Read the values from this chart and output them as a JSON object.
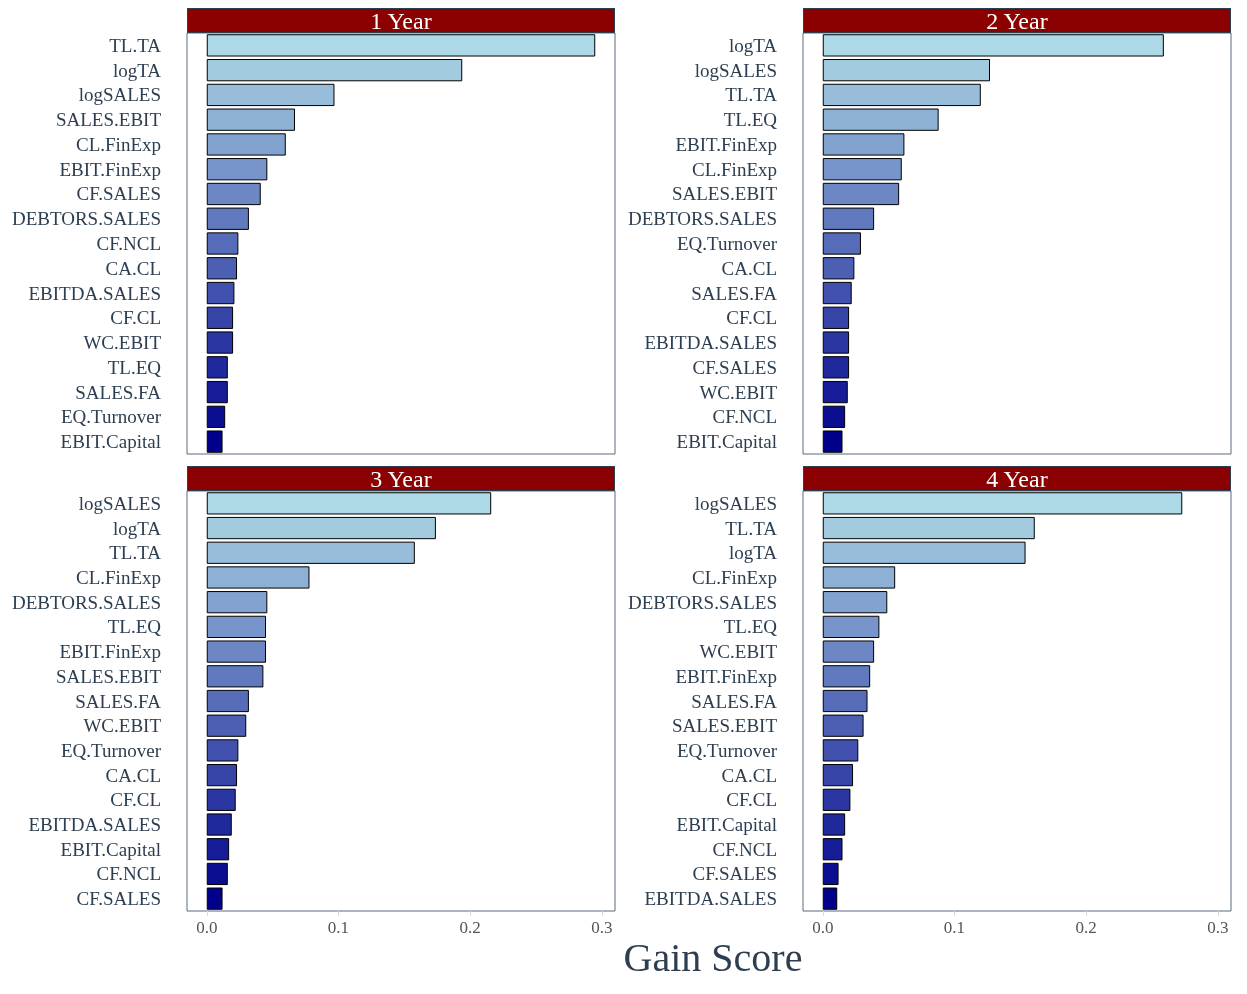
{
  "chart_data": [
    {
      "type": "bar",
      "orientation": "horizontal",
      "title": "1 Year",
      "categories": [
        "TL.TA",
        "logTA",
        "logSALES",
        "SALES.EBIT",
        "CL.FinExp",
        "EBIT.FinExp",
        "CF.SALES",
        "DEBTORS.SALES",
        "CF.NCL",
        "CA.CL",
        "EBITDA.SALES",
        "CF.CL",
        "WC.EBIT",
        "TL.EQ",
        "SALES.FA",
        "EQ.Turnover",
        "EBIT.Capital"
      ],
      "values": [
        0.295,
        0.194,
        0.097,
        0.067,
        0.06,
        0.046,
        0.041,
        0.032,
        0.024,
        0.023,
        0.021,
        0.02,
        0.02,
        0.016,
        0.016,
        0.014,
        0.012
      ],
      "colors": [
        "#add8e6",
        "#a2cbe0",
        "#97bddb",
        "#8db0d5",
        "#82a2cf",
        "#7795ca",
        "#6c87c4",
        "#617abe",
        "#576cb9",
        "#4c5fb3",
        "#4151ad",
        "#3644a8",
        "#2b36a2",
        "#20299c",
        "#161b97",
        "#0b0e91",
        "#00008b"
      ],
      "xlim": [
        -0.015,
        0.31
      ],
      "tick_labels": "y",
      "grid": false
    },
    {
      "type": "bar",
      "orientation": "horizontal",
      "title": "2 Year",
      "categories": [
        "logTA",
        "logSALES",
        "TL.TA",
        "TL.EQ",
        "EBIT.FinExp",
        "CL.FinExp",
        "SALES.EBIT",
        "DEBTORS.SALES",
        "EQ.Turnover",
        "CA.CL",
        "SALES.FA",
        "CF.CL",
        "EBITDA.SALES",
        "CF.SALES",
        "WC.EBIT",
        "CF.NCL",
        "EBIT.Capital"
      ],
      "values": [
        0.259,
        0.127,
        0.12,
        0.088,
        0.062,
        0.06,
        0.058,
        0.039,
        0.029,
        0.024,
        0.022,
        0.02,
        0.02,
        0.02,
        0.019,
        0.017,
        0.015
      ],
      "colors": [
        "#add8e6",
        "#a2cbe0",
        "#97bddb",
        "#8db0d5",
        "#82a2cf",
        "#7795ca",
        "#6c87c4",
        "#617abe",
        "#576cb9",
        "#4c5fb3",
        "#4151ad",
        "#3644a8",
        "#2b36a2",
        "#20299c",
        "#161b97",
        "#0b0e91",
        "#00008b"
      ],
      "xlim": [
        -0.015,
        0.31
      ],
      "tick_labels": "y",
      "grid": false
    },
    {
      "type": "bar",
      "orientation": "horizontal",
      "title": "3 Year",
      "categories": [
        "logSALES",
        "logTA",
        "TL.TA",
        "CL.FinExp",
        "DEBTORS.SALES",
        "TL.EQ",
        "EBIT.FinExp",
        "SALES.EBIT",
        "SALES.FA",
        "WC.EBIT",
        "EQ.Turnover",
        "CA.CL",
        "CF.CL",
        "EBITDA.SALES",
        "EBIT.Capital",
        "CF.NCL",
        "CF.SALES"
      ],
      "values": [
        0.216,
        0.174,
        0.158,
        0.078,
        0.046,
        0.045,
        0.045,
        0.043,
        0.032,
        0.03,
        0.024,
        0.023,
        0.022,
        0.019,
        0.017,
        0.016,
        0.012
      ],
      "colors": [
        "#add8e6",
        "#a2cbe0",
        "#97bddb",
        "#8db0d5",
        "#82a2cf",
        "#7795ca",
        "#6c87c4",
        "#617abe",
        "#576cb9",
        "#4c5fb3",
        "#4151ad",
        "#3644a8",
        "#2b36a2",
        "#20299c",
        "#161b97",
        "#0b0e91",
        "#00008b"
      ],
      "xlim": [
        -0.015,
        0.31
      ],
      "xticks": [
        {
          "value": 0,
          "label": "0.0"
        },
        0.1,
        0.2,
        0.3
      ],
      "grid": false
    },
    {
      "type": "bar",
      "orientation": "horizontal",
      "title": "4 Year",
      "xlabel": "Gain Score",
      "categories": [
        "logSALES",
        "TL.TA",
        "logTA",
        "CL.FinExp",
        "DEBTORS.SALES",
        "TL.EQ",
        "WC.EBIT",
        "EBIT.FinExp",
        "SALES.FA",
        "SALES.EBIT",
        "EQ.Turnover",
        "CA.CL",
        "CF.CL",
        "EBIT.Capital",
        "CF.NCL",
        "CF.SALES",
        "EBITDA.SALES"
      ],
      "values": [
        0.273,
        0.161,
        0.154,
        0.055,
        0.049,
        0.043,
        0.039,
        0.036,
        0.034,
        0.031,
        0.027,
        0.023,
        0.021,
        0.017,
        0.015,
        0.012,
        0.011
      ],
      "colors": [
        "#add8e6",
        "#a2cbe0",
        "#97bddb",
        "#8db0d5",
        "#82a2cf",
        "#7795ca",
        "#6c87c4",
        "#617abe",
        "#576cb9",
        "#4c5fb3",
        "#4151ad",
        "#3644a8",
        "#2b36a2",
        "#20299c",
        "#161b97",
        "#0b0e91",
        "#00008b"
      ],
      "xlim": [
        -0.015,
        0.31
      ],
      "xticks": [
        {
          "value": 0,
          "label": "0.0"
        },
        0.1,
        0.2,
        0.3
      ],
      "grid": false
    }
  ]
}
